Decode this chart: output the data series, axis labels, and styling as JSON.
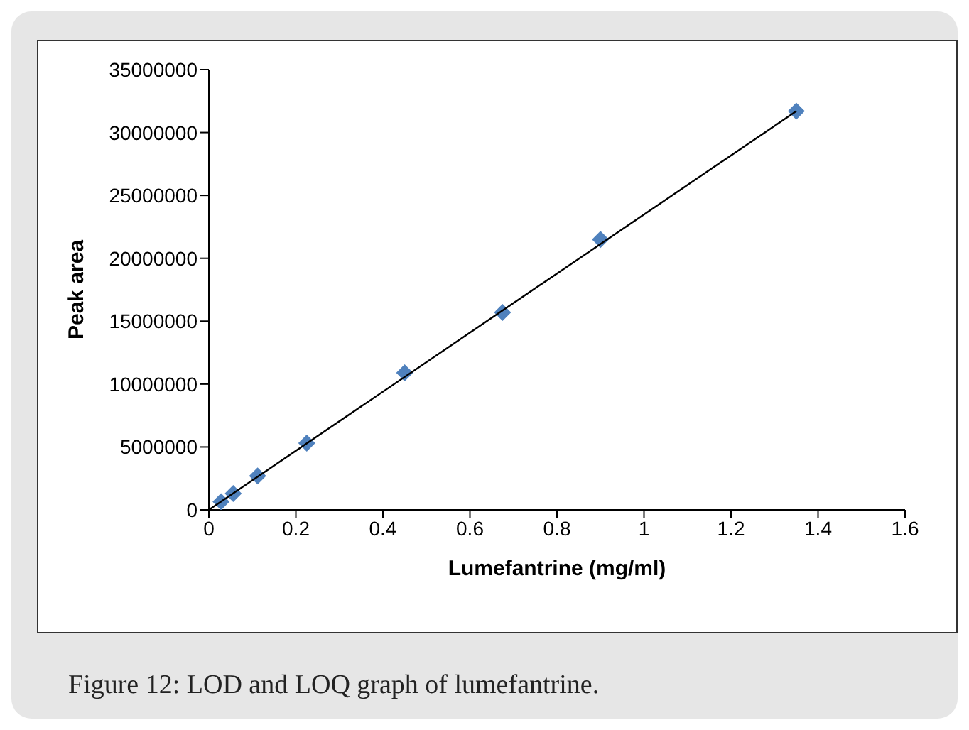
{
  "chart_data": {
    "type": "scatter",
    "xlabel": "Lumefantrine (mg/ml)",
    "ylabel": "Peak area",
    "annotations": [
      "Figure 12: LOD and LOQ graph of lumefantrine."
    ],
    "series": [
      {
        "type": "scatter",
        "color": "#4f81bd",
        "marker": "diamond",
        "x": [
          0.028,
          0.056,
          0.112,
          0.225,
          0.45,
          0.675,
          0.9,
          1.35
        ],
        "values": [
          650000,
          1300000,
          2700000,
          5300000,
          10900000,
          15700000,
          21500000,
          31700000
        ]
      },
      {
        "type": "line",
        "color": "#000000",
        "marker": "none",
        "x": [
          0,
          1.35
        ],
        "values": [
          0,
          31700000
        ]
      }
    ],
    "xlim": [
      0,
      1.6
    ],
    "xticks": [
      0,
      0.2,
      0.4,
      0.6,
      0.8,
      1,
      1.2,
      1.4,
      1.6
    ],
    "ylim": [
      0,
      35000000
    ],
    "yticks": [
      0,
      5000000,
      10000000,
      15000000,
      20000000,
      25000000,
      30000000,
      35000000
    ],
    "grid": false,
    "legend": false
  }
}
